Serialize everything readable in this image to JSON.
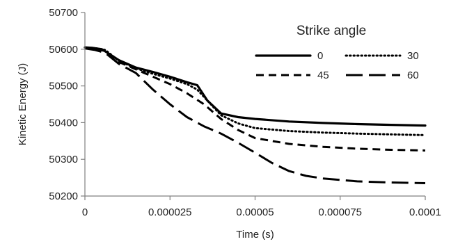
{
  "chart_data": {
    "type": "line",
    "xlabel": "Time (s)",
    "ylabel": "Kinetic Energy (J)",
    "xlim": [
      0,
      0.0001
    ],
    "ylim": [
      50200,
      50700
    ],
    "x_ticks": [
      0,
      2.5e-05,
      5e-05,
      7.5e-05,
      0.0001
    ],
    "x_tick_labels": [
      "0",
      "0.000025",
      "0.00005",
      "0.000075",
      "0.0001"
    ],
    "y_ticks": [
      50200,
      50300,
      50400,
      50500,
      50600,
      50700
    ],
    "y_tick_labels": [
      "50200",
      "50300",
      "50400",
      "50500",
      "50600",
      "50700"
    ],
    "grid": false,
    "legend": {
      "title": "Strike angle",
      "placement": "top-right",
      "columns": 2
    },
    "series": [
      {
        "name": "0",
        "color": "#000000",
        "dash": "solid",
        "points": [
          [
            0,
            50605
          ],
          [
            2e-06,
            50604
          ],
          [
            5e-06,
            50600
          ],
          [
            1e-05,
            50570
          ],
          [
            1.5e-05,
            50550
          ],
          [
            2e-05,
            50538
          ],
          [
            2.5e-05,
            50525
          ],
          [
            3e-05,
            50510
          ],
          [
            3.3e-05,
            50502
          ],
          [
            3.6e-05,
            50460
          ],
          [
            4e-05,
            50425
          ],
          [
            4.5e-05,
            50415
          ],
          [
            5e-05,
            50410
          ],
          [
            6e-05,
            50403
          ],
          [
            7e-05,
            50399
          ],
          [
            8e-05,
            50396
          ],
          [
            9e-05,
            50394
          ],
          [
            0.0001,
            50392
          ]
        ]
      },
      {
        "name": "30",
        "color": "#000000",
        "dash": "dotted",
        "points": [
          [
            0,
            50605
          ],
          [
            3e-06,
            50603
          ],
          [
            6e-06,
            50598
          ],
          [
            1e-05,
            50568
          ],
          [
            1.5e-05,
            50548
          ],
          [
            2e-05,
            50533
          ],
          [
            2.5e-05,
            50520
          ],
          [
            3e-05,
            50505
          ],
          [
            3.3e-05,
            50490
          ],
          [
            3.7e-05,
            50450
          ],
          [
            4e-05,
            50420
          ],
          [
            4.5e-05,
            50398
          ],
          [
            5e-05,
            50385
          ],
          [
            6e-05,
            50377
          ],
          [
            7e-05,
            50373
          ],
          [
            8e-05,
            50370
          ],
          [
            9e-05,
            50368
          ],
          [
            0.0001,
            50366
          ]
        ]
      },
      {
        "name": "45",
        "color": "#000000",
        "dash": "dashed",
        "points": [
          [
            0,
            50603
          ],
          [
            3e-06,
            50601
          ],
          [
            6e-06,
            50595
          ],
          [
            1e-05,
            50565
          ],
          [
            1.5e-05,
            50545
          ],
          [
            2e-05,
            50525
          ],
          [
            2.5e-05,
            50505
          ],
          [
            3e-05,
            50480
          ],
          [
            3.5e-05,
            50450
          ],
          [
            4e-05,
            50410
          ],
          [
            4.5e-05,
            50380
          ],
          [
            5e-05,
            50358
          ],
          [
            6e-05,
            50342
          ],
          [
            7e-05,
            50334
          ],
          [
            8e-05,
            50329
          ],
          [
            9e-05,
            50326
          ],
          [
            0.0001,
            50324
          ]
        ]
      },
      {
        "name": "60",
        "color": "#000000",
        "dash": "long-dash",
        "points": [
          [
            0,
            50602
          ],
          [
            3e-06,
            50598
          ],
          [
            6e-06,
            50590
          ],
          [
            1e-05,
            50560
          ],
          [
            1.5e-05,
            50535
          ],
          [
            2e-05,
            50490
          ],
          [
            2.5e-05,
            50450
          ],
          [
            3e-05,
            50415
          ],
          [
            3.5e-05,
            50390
          ],
          [
            4e-05,
            50370
          ],
          [
            4.5e-05,
            50345
          ],
          [
            5e-05,
            50318
          ],
          [
            5.5e-05,
            50290
          ],
          [
            6e-05,
            50268
          ],
          [
            6.5e-05,
            50255
          ],
          [
            7e-05,
            50248
          ],
          [
            7.5e-05,
            50244
          ],
          [
            8e-05,
            50240
          ],
          [
            9e-05,
            50237
          ],
          [
            0.0001,
            50235
          ]
        ]
      }
    ]
  }
}
